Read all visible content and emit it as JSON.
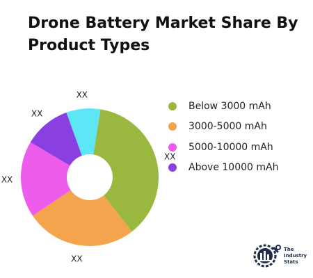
{
  "title": "Drone Battery Market Share By Product Types",
  "chart_data": {
    "type": "pie",
    "variant": "donut",
    "categories": [
      "Below 3000 mAh",
      "3000-5000 mAh",
      "5000-10000 mAh",
      "Above 10000 mAh",
      ""
    ],
    "values": [
      37,
      26,
      18,
      11,
      8
    ],
    "data_labels": [
      "XX",
      "XX",
      "XX",
      "XX",
      "XX"
    ],
    "colors": [
      "#9ab83f",
      "#f4a44c",
      "#ee5cec",
      "#8a3fe0",
      "#5ce6f6"
    ],
    "legend_position": "right",
    "legend": [
      {
        "label": "Below 3000 mAh",
        "color": "#9ab83f"
      },
      {
        "label": "3000-5000 mAh",
        "color": "#f4a44c"
      },
      {
        "label": "5000-10000 mAh",
        "color": "#ee5cec"
      },
      {
        "label": "Above 10000 mAh",
        "color": "#8a3fe0"
      }
    ]
  },
  "logo": {
    "line1": "The",
    "line2": "Industry",
    "line3": "Stats",
    "icon": "factory-gear-icon",
    "color": "#1f2d4a"
  }
}
